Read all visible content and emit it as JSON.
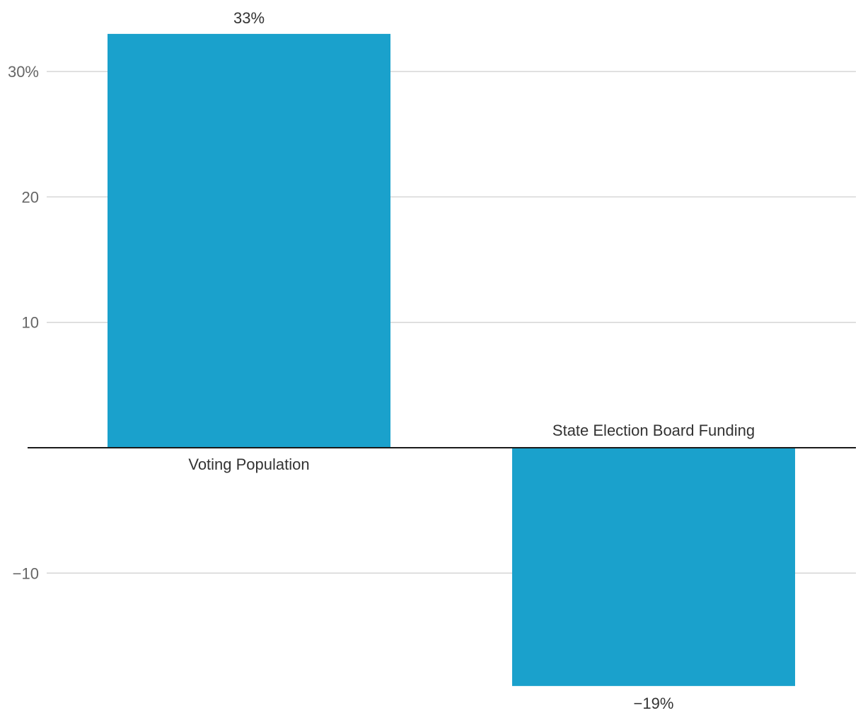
{
  "chart_data": {
    "type": "bar",
    "categories": [
      "Voting Population",
      "State Election Board Funding"
    ],
    "values": [
      33,
      -19
    ],
    "value_labels": [
      "33%",
      "−19%"
    ],
    "ylim": [
      -19,
      33
    ],
    "yticks": [
      {
        "value": 30,
        "label": "30%"
      },
      {
        "value": 20,
        "label": "20"
      },
      {
        "value": 10,
        "label": "10"
      },
      {
        "value": -10,
        "label": "−10"
      }
    ],
    "bar_color": "#1aa1cc",
    "grid": true,
    "legend": "none",
    "title": "",
    "xlabel": "",
    "ylabel": ""
  }
}
